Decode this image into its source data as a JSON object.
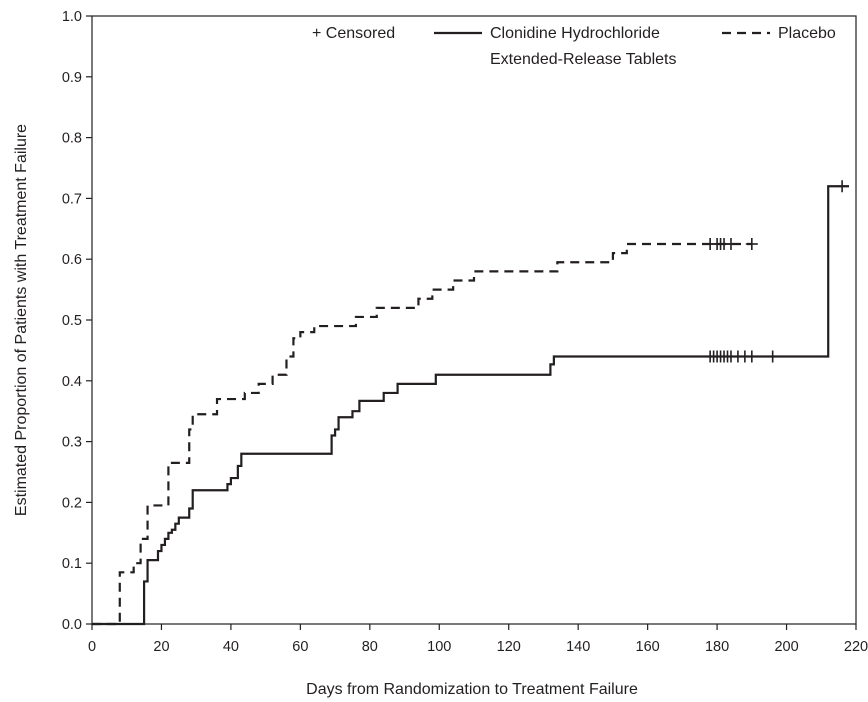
{
  "chart_data": {
    "type": "line",
    "title": "",
    "xlabel": "Days from Randomization to Treatment Failure",
    "ylabel": "Estimated Proportion of Patients with Treatment Failure",
    "xlim": [
      0,
      220
    ],
    "ylim": [
      0,
      1.0
    ],
    "x_ticks": [
      "0",
      "20",
      "40",
      "60",
      "80",
      "100",
      "120",
      "140",
      "160",
      "180",
      "200",
      "220"
    ],
    "y_ticks": [
      "0.0",
      "0.1",
      "0.2",
      "0.3",
      "0.4",
      "0.5",
      "0.6",
      "0.7",
      "0.8",
      "0.9",
      "1.0"
    ],
    "grid": false,
    "step": true,
    "legend": {
      "position": "top-right",
      "censored_label": "+ Censored",
      "entries": [
        "Clonidine Hydrochloride",
        "Extended-Release Tablets",
        "Placebo"
      ]
    },
    "series": [
      {
        "name": "Clonidine Hydrochloride Extended-Release Tablets",
        "line_style": "solid",
        "color": "#231f20",
        "x": [
          0,
          15,
          16,
          17,
          19,
          20,
          21,
          22,
          23,
          24,
          25,
          28,
          29,
          39,
          40,
          42,
          43,
          69,
          70,
          71,
          75,
          77,
          82,
          84,
          88,
          99,
          132,
          133,
          212,
          218
        ],
        "y": [
          0.0,
          0.07,
          0.105,
          0.105,
          0.12,
          0.13,
          0.14,
          0.15,
          0.155,
          0.165,
          0.175,
          0.19,
          0.22,
          0.23,
          0.24,
          0.26,
          0.28,
          0.31,
          0.32,
          0.34,
          0.35,
          0.367,
          0.367,
          0.38,
          0.395,
          0.41,
          0.427,
          0.44,
          0.72,
          0.72
        ],
        "censored_x": [
          178,
          179,
          180,
          181,
          182,
          183,
          184,
          186,
          188,
          190,
          196,
          216
        ]
      },
      {
        "name": "Placebo",
        "line_style": "dashed",
        "color": "#231f20",
        "x": [
          0,
          8,
          10,
          12,
          14,
          16,
          20,
          22,
          24,
          28,
          29,
          32,
          36,
          40,
          44,
          48,
          52,
          56,
          58,
          60,
          64,
          68,
          72,
          76,
          82,
          88,
          94,
          98,
          104,
          110,
          118,
          128,
          134,
          140,
          150,
          154,
          160,
          178,
          190
        ],
        "y": [
          0.0,
          0.085,
          0.085,
          0.1,
          0.14,
          0.195,
          0.195,
          0.265,
          0.265,
          0.32,
          0.345,
          0.345,
          0.37,
          0.37,
          0.38,
          0.395,
          0.41,
          0.44,
          0.47,
          0.48,
          0.49,
          0.49,
          0.49,
          0.505,
          0.52,
          0.52,
          0.535,
          0.55,
          0.565,
          0.58,
          0.58,
          0.58,
          0.595,
          0.595,
          0.61,
          0.625,
          0.625,
          0.625,
          0.625
        ],
        "censored_x": [
          178,
          180,
          181,
          182,
          184,
          190
        ]
      }
    ]
  }
}
